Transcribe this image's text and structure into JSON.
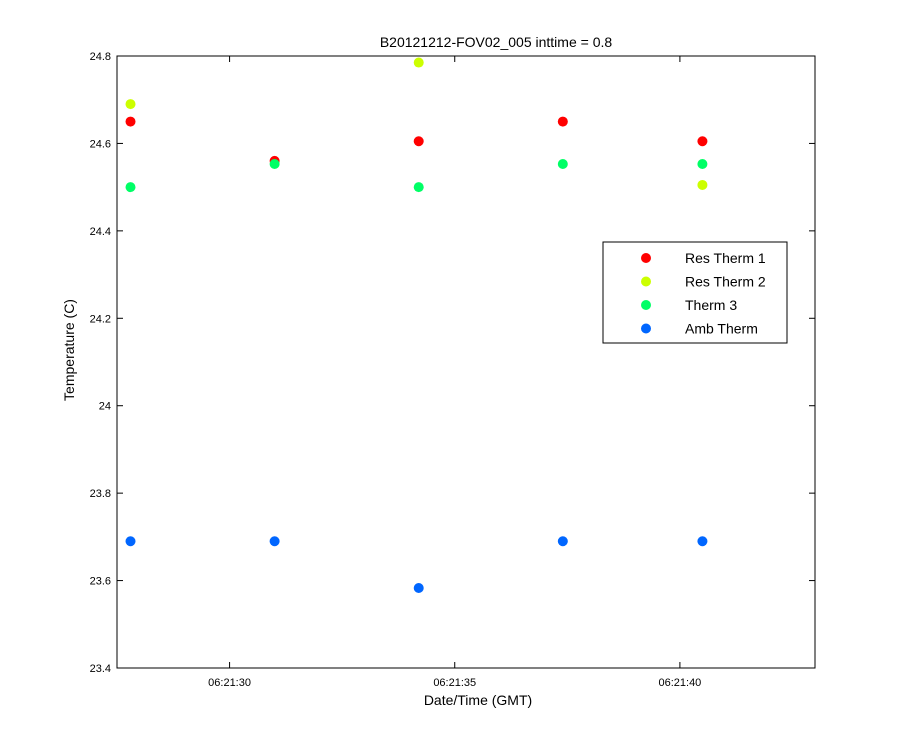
{
  "chart_data": {
    "type": "scatter",
    "title": "B20121212-FOV02_005 inttime = 0.8",
    "xlabel": "Date/Time (GMT)",
    "ylabel": "Temperature (C)",
    "xlim": [
      "06:21:27.5",
      "06:21:43"
    ],
    "ylim": [
      23.4,
      24.8
    ],
    "xticks": [
      "06:21:30",
      "06:21:35",
      "06:21:40"
    ],
    "yticks": [
      "23.4",
      "23.6",
      "23.8",
      "24",
      "24.2",
      "24.4",
      "24.6",
      "24.8"
    ],
    "grid": false,
    "legend_position": "right",
    "series": [
      {
        "name": "Res Therm 1",
        "color": "#ff0000",
        "points": [
          {
            "x": "06:21:27.8",
            "y": 24.65
          },
          {
            "x": "06:21:31.0",
            "y": 24.56
          },
          {
            "x": "06:21:34.2",
            "y": 24.605
          },
          {
            "x": "06:21:37.4",
            "y": 24.65
          },
          {
            "x": "06:21:40.5",
            "y": 24.605
          }
        ]
      },
      {
        "name": "Res Therm 2",
        "color": "#ccff00",
        "points": [
          {
            "x": "06:21:27.8",
            "y": 24.69
          },
          {
            "x": "06:21:34.2",
            "y": 24.785
          },
          {
            "x": "06:21:40.5",
            "y": 24.505
          }
        ]
      },
      {
        "name": "Therm 3",
        "color": "#00ff66",
        "points": [
          {
            "x": "06:21:27.8",
            "y": 24.5
          },
          {
            "x": "06:21:31.0",
            "y": 24.553
          },
          {
            "x": "06:21:34.2",
            "y": 24.5
          },
          {
            "x": "06:21:37.4",
            "y": 24.553
          },
          {
            "x": "06:21:40.5",
            "y": 24.553
          }
        ]
      },
      {
        "name": "Amb Therm",
        "color": "#0066ff",
        "points": [
          {
            "x": "06:21:27.8",
            "y": 23.69
          },
          {
            "x": "06:21:31.0",
            "y": 23.69
          },
          {
            "x": "06:21:34.2",
            "y": 23.583
          },
          {
            "x": "06:21:37.4",
            "y": 23.69
          },
          {
            "x": "06:21:40.5",
            "y": 23.69
          }
        ]
      }
    ]
  }
}
